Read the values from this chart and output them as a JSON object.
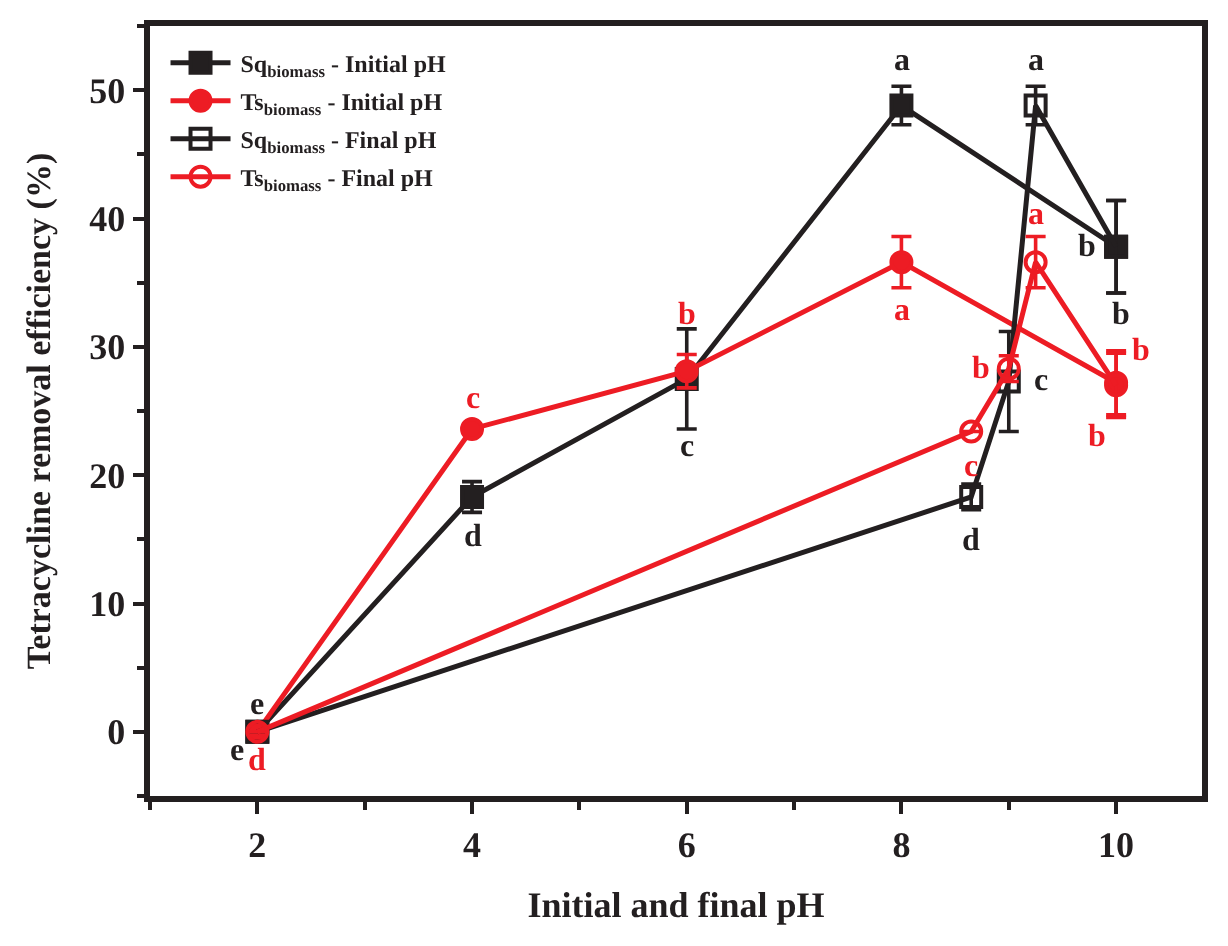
{
  "chart_data": {
    "type": "line",
    "xlabel": "Initial and final pH",
    "ylabel": "Tetracycline removal efficiency (%)",
    "xlim": [
      1,
      10.8
    ],
    "ylim": [
      -5,
      55
    ],
    "xticks": [
      2,
      4,
      6,
      8,
      10
    ],
    "yticks": [
      0,
      10,
      20,
      30,
      40,
      50
    ],
    "legend": "top left",
    "line_style": "solid",
    "series": [
      {
        "name": "Sq$_{biomass}$ - Initial pH",
        "color": "#231f20",
        "marker": "square",
        "x": [
          2,
          4,
          6,
          8,
          10
        ],
        "values": [
          0,
          18.3,
          27.5,
          48.8,
          37.8
        ],
        "errors": [
          null,
          1.2,
          3.9,
          1.5,
          3.6
        ],
        "value_labels": [
          "e",
          "d",
          "c",
          "a",
          "b"
        ]
      },
      {
        "name": "Ts$_{biomass}$ - Initial pH",
        "color": "#ed1c24",
        "marker": "circle",
        "x": [
          2,
          4,
          6,
          8,
          10
        ],
        "values": [
          0,
          23.6,
          28.1,
          36.6,
          27.2
        ],
        "errors": [
          null,
          null,
          1.3,
          2.0,
          2.5
        ],
        "value_labels": [
          "d",
          "c",
          "b",
          "a",
          "b"
        ]
      },
      {
        "name": "Sq$_{biomass}$ - Final pH",
        "color": "#231f20",
        "marker": "square-open",
        "x": [
          2,
          8.65,
          9.0,
          9.25,
          10
        ],
        "values": [
          0,
          18.3,
          27.3,
          48.8,
          37.8
        ],
        "errors": [
          null,
          1.0,
          3.9,
          1.5,
          3.6
        ],
        "value_labels": [
          "e",
          "d",
          "c",
          "a",
          "b"
        ]
      },
      {
        "name": "Ts$_{biomass}$ - Final pH",
        "color": "#ed1c24",
        "marker": "circle-open",
        "x": [
          2,
          8.65,
          9.0,
          9.25,
          10
        ],
        "values": [
          0,
          23.4,
          28.3,
          36.6,
          27.0
        ],
        "errors": [
          null,
          null,
          1.0,
          2.0,
          2.5
        ],
        "value_labels": [
          null,
          "c",
          "b",
          "a",
          "b"
        ]
      }
    ]
  }
}
